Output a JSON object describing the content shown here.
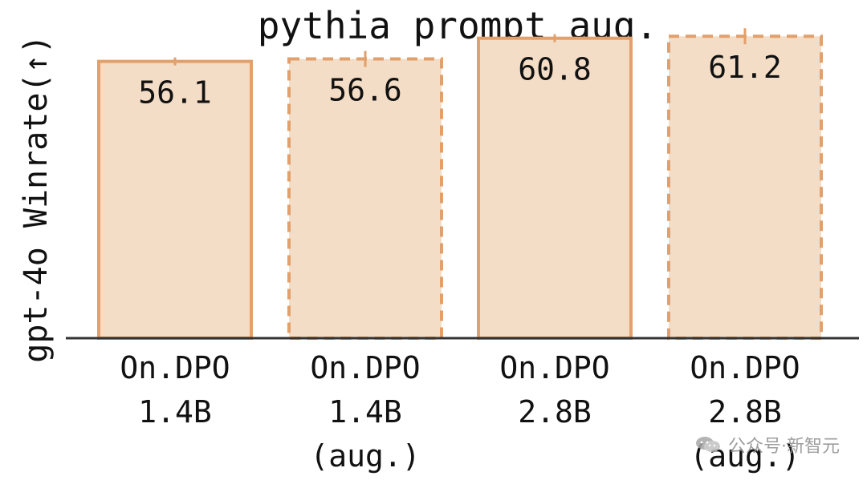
{
  "chart_data": {
    "type": "bar",
    "title": "pythia prompt aug.",
    "ylabel": "gpt-4o Winrate(↑)",
    "ylim": [
      0,
      64
    ],
    "categories": [
      [
        "On.DPO",
        "1.4B"
      ],
      [
        "On.DPO",
        "1.4B",
        "(aug.)"
      ],
      [
        "On.DPO",
        "2.8B"
      ],
      [
        "On.DPO",
        "2.8B",
        "(aug.)"
      ]
    ],
    "values": [
      56.1,
      56.6,
      60.8,
      61.2
    ],
    "value_labels": [
      "56.1",
      "56.6",
      "60.8",
      "61.2"
    ],
    "line_styles": [
      "solid",
      "dashed",
      "solid",
      "dashed"
    ],
    "colors": {
      "bar_fill": "#f4ddc6",
      "bar_edge": "#e1a06c",
      "axis": "#333333",
      "text": "#111111"
    },
    "grid": false,
    "legend": "none"
  },
  "watermark": {
    "text": "公众号·新智元",
    "icon": "wechat-logo"
  }
}
